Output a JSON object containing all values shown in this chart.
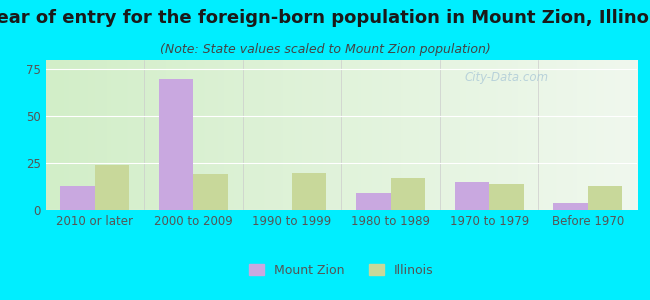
{
  "title": "Year of entry for the foreign-born population in Mount Zion, Illinois",
  "subtitle": "(Note: State values scaled to Mount Zion population)",
  "categories": [
    "2010 or later",
    "2000 to 2009",
    "1990 to 1999",
    "1980 to 1989",
    "1970 to 1979",
    "Before 1970"
  ],
  "mount_zion": [
    13,
    70,
    0,
    9,
    15,
    4
  ],
  "illinois": [
    24,
    19,
    20,
    17,
    14,
    13
  ],
  "mount_zion_color": "#c9a8e0",
  "illinois_color": "#c8d89a",
  "background_outer": "#00eeff",
  "ylim": [
    0,
    80
  ],
  "yticks": [
    0,
    25,
    50,
    75
  ],
  "bar_width": 0.35,
  "title_fontsize": 13,
  "subtitle_fontsize": 9,
  "tick_fontsize": 8.5,
  "legend_fontsize": 9,
  "title_color": "#1a1a1a",
  "subtitle_color": "#444444",
  "tick_color": "#555555",
  "watermark_color": "#b0ccd8",
  "grid_color": "#ffffff",
  "axis_line_color": "#aaaaaa"
}
